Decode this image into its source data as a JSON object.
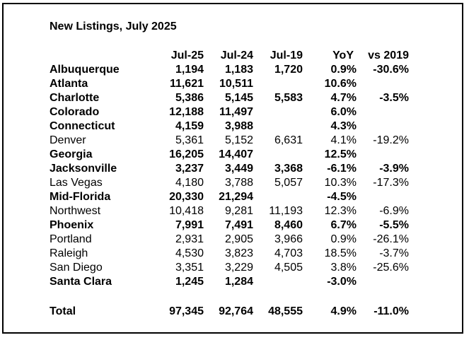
{
  "title": "New Listings, July 2025",
  "columns": [
    "Jul-25",
    "Jul-24",
    "Jul-19",
    "YoY",
    "vs 2019"
  ],
  "rows": [
    {
      "name": "Albuquerque",
      "bold": true,
      "jul25": "1,194",
      "jul24": "1,183",
      "jul19": "1,720",
      "yoy": "0.9%",
      "vs2019": "-30.6%"
    },
    {
      "name": "Atlanta",
      "bold": true,
      "jul25": "11,621",
      "jul24": "10,511",
      "jul19": "",
      "yoy": "10.6%",
      "vs2019": ""
    },
    {
      "name": "Charlotte",
      "bold": true,
      "jul25": "5,386",
      "jul24": "5,145",
      "jul19": "5,583",
      "yoy": "4.7%",
      "vs2019": "-3.5%"
    },
    {
      "name": "Colorado",
      "bold": true,
      "jul25": "12,188",
      "jul24": "11,497",
      "jul19": "",
      "yoy": "6.0%",
      "vs2019": ""
    },
    {
      "name": "Connecticut",
      "bold": true,
      "jul25": "4,159",
      "jul24": "3,988",
      "jul19": "",
      "yoy": "4.3%",
      "vs2019": ""
    },
    {
      "name": "Denver",
      "bold": false,
      "jul25": "5,361",
      "jul24": "5,152",
      "jul19": "6,631",
      "yoy": "4.1%",
      "vs2019": "-19.2%"
    },
    {
      "name": "Georgia",
      "bold": true,
      "jul25": "16,205",
      "jul24": "14,407",
      "jul19": "",
      "yoy": "12.5%",
      "vs2019": ""
    },
    {
      "name": "Jacksonville",
      "bold": true,
      "jul25": "3,237",
      "jul24": "3,449",
      "jul19": "3,368",
      "yoy": "-6.1%",
      "vs2019": "-3.9%"
    },
    {
      "name": "Las Vegas",
      "bold": false,
      "jul25": "4,180",
      "jul24": "3,788",
      "jul19": "5,057",
      "yoy": "10.3%",
      "vs2019": "-17.3%"
    },
    {
      "name": "Mid-Florida",
      "bold": true,
      "jul25": "20,330",
      "jul24": "21,294",
      "jul19": "",
      "yoy": "-4.5%",
      "vs2019": ""
    },
    {
      "name": "Northwest",
      "bold": false,
      "jul25": "10,418",
      "jul24": "9,281",
      "jul19": "11,193",
      "yoy": "12.3%",
      "vs2019": "-6.9%"
    },
    {
      "name": "Phoenix",
      "bold": true,
      "jul25": "7,991",
      "jul24": "7,491",
      "jul19": "8,460",
      "yoy": "6.7%",
      "vs2019": "-5.5%"
    },
    {
      "name": "Portland",
      "bold": false,
      "jul25": "2,931",
      "jul24": "2,905",
      "jul19": "3,966",
      "yoy": "0.9%",
      "vs2019": "-26.1%"
    },
    {
      "name": "Raleigh",
      "bold": false,
      "jul25": "4,530",
      "jul24": "3,823",
      "jul19": "4,703",
      "yoy": "18.5%",
      "vs2019": "-3.7%"
    },
    {
      "name": "San Diego",
      "bold": false,
      "jul25": "3,351",
      "jul24": "3,229",
      "jul19": "4,505",
      "yoy": "3.8%",
      "vs2019": "-25.6%"
    },
    {
      "name": "Santa Clara",
      "bold": true,
      "jul25": "1,245",
      "jul24": "1,284",
      "jul19": "",
      "yoy": "-3.0%",
      "vs2019": ""
    }
  ],
  "total": {
    "name": "Total",
    "jul25": "97,345",
    "jul24": "92,764",
    "jul19": "48,555",
    "yoy": "4.9%",
    "vs2019": "-11.0%"
  }
}
